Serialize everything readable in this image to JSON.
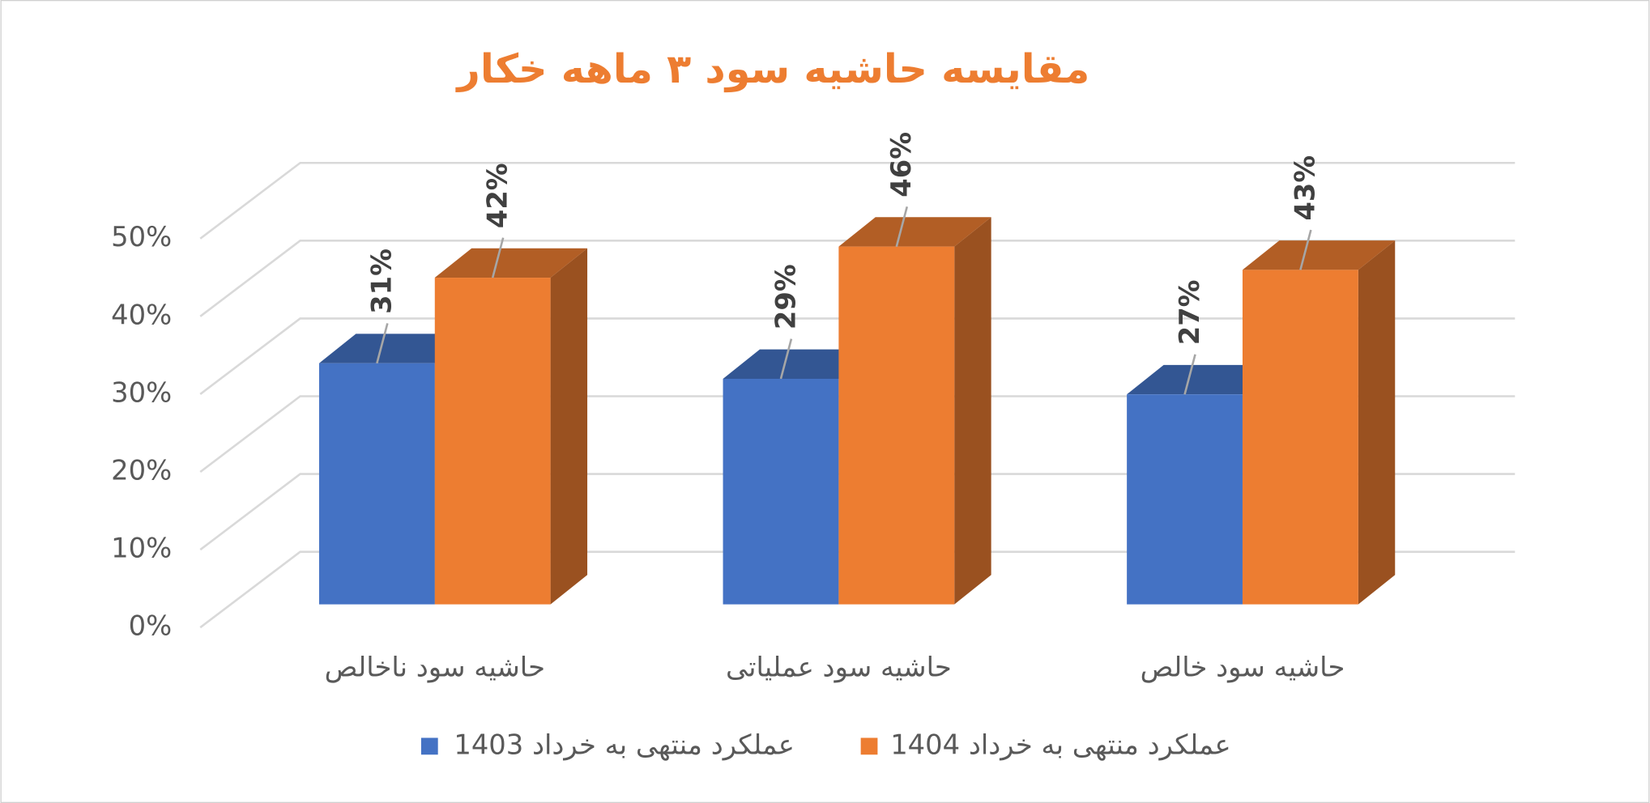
{
  "chart_data": {
    "type": "bar3d",
    "title": "مقایسه حاشیه سود ۳ ماهه خکار",
    "categories": [
      "حاشیه سود ناخالص",
      "حاشیه سود عملیاتی",
      "حاشیه سود خالص"
    ],
    "series": [
      {
        "name": "عملکرد منتهی به خرداد 1403",
        "color": "#4472c4",
        "values": [
          31,
          29,
          27
        ],
        "value_labels": [
          "31%",
          "29%",
          "27%"
        ]
      },
      {
        "name": "عملکرد منتهی به خرداد 1404",
        "color": "#ed7d31",
        "values": [
          42,
          46,
          43
        ],
        "value_labels": [
          "42%",
          "46%",
          "43%"
        ]
      }
    ],
    "ylim": [
      0,
      50
    ],
    "yticks": [
      {
        "value": 0,
        "label": "0%"
      },
      {
        "value": 10,
        "label": "10%"
      },
      {
        "value": 20,
        "label": "20%"
      },
      {
        "value": 30,
        "label": "30%"
      },
      {
        "value": 40,
        "label": "40%"
      },
      {
        "value": 50,
        "label": "50%"
      }
    ],
    "grid": true
  }
}
